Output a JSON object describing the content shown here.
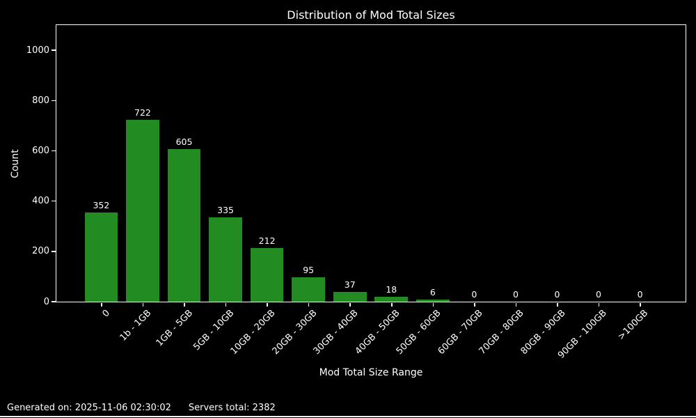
{
  "chart_data": {
    "type": "bar",
    "title": "Distribution of Mod Total Sizes",
    "xlabel": "Mod Total Size Range",
    "ylabel": "Count",
    "categories": [
      "0",
      "1b - 1GB",
      "1GB - 5GB",
      "5GB - 10GB",
      "10GB - 20GB",
      "20GB - 30GB",
      "30GB - 40GB",
      "40GB - 50GB",
      "50GB - 60GB",
      "60GB - 70GB",
      "70GB - 80GB",
      "80GB - 90GB",
      "90GB - 100GB",
      ">100GB"
    ],
    "values": [
      352,
      722,
      605,
      335,
      212,
      95,
      37,
      18,
      6,
      0,
      0,
      0,
      0,
      0
    ],
    "yticks": [
      0,
      200,
      400,
      600,
      800,
      1000
    ],
    "ylim": [
      0,
      1100
    ],
    "xtick_rotation": 45,
    "bar_labels_shown": true,
    "grid": false,
    "legend": null,
    "colors": {
      "bar": "#228B22",
      "background": "#000000",
      "text": "#ffffff",
      "spine": "#ffffff"
    }
  },
  "footer": {
    "generated": "Generated on: 2025-11-06 02:30:02",
    "servers_total": "Servers total: 2382"
  }
}
